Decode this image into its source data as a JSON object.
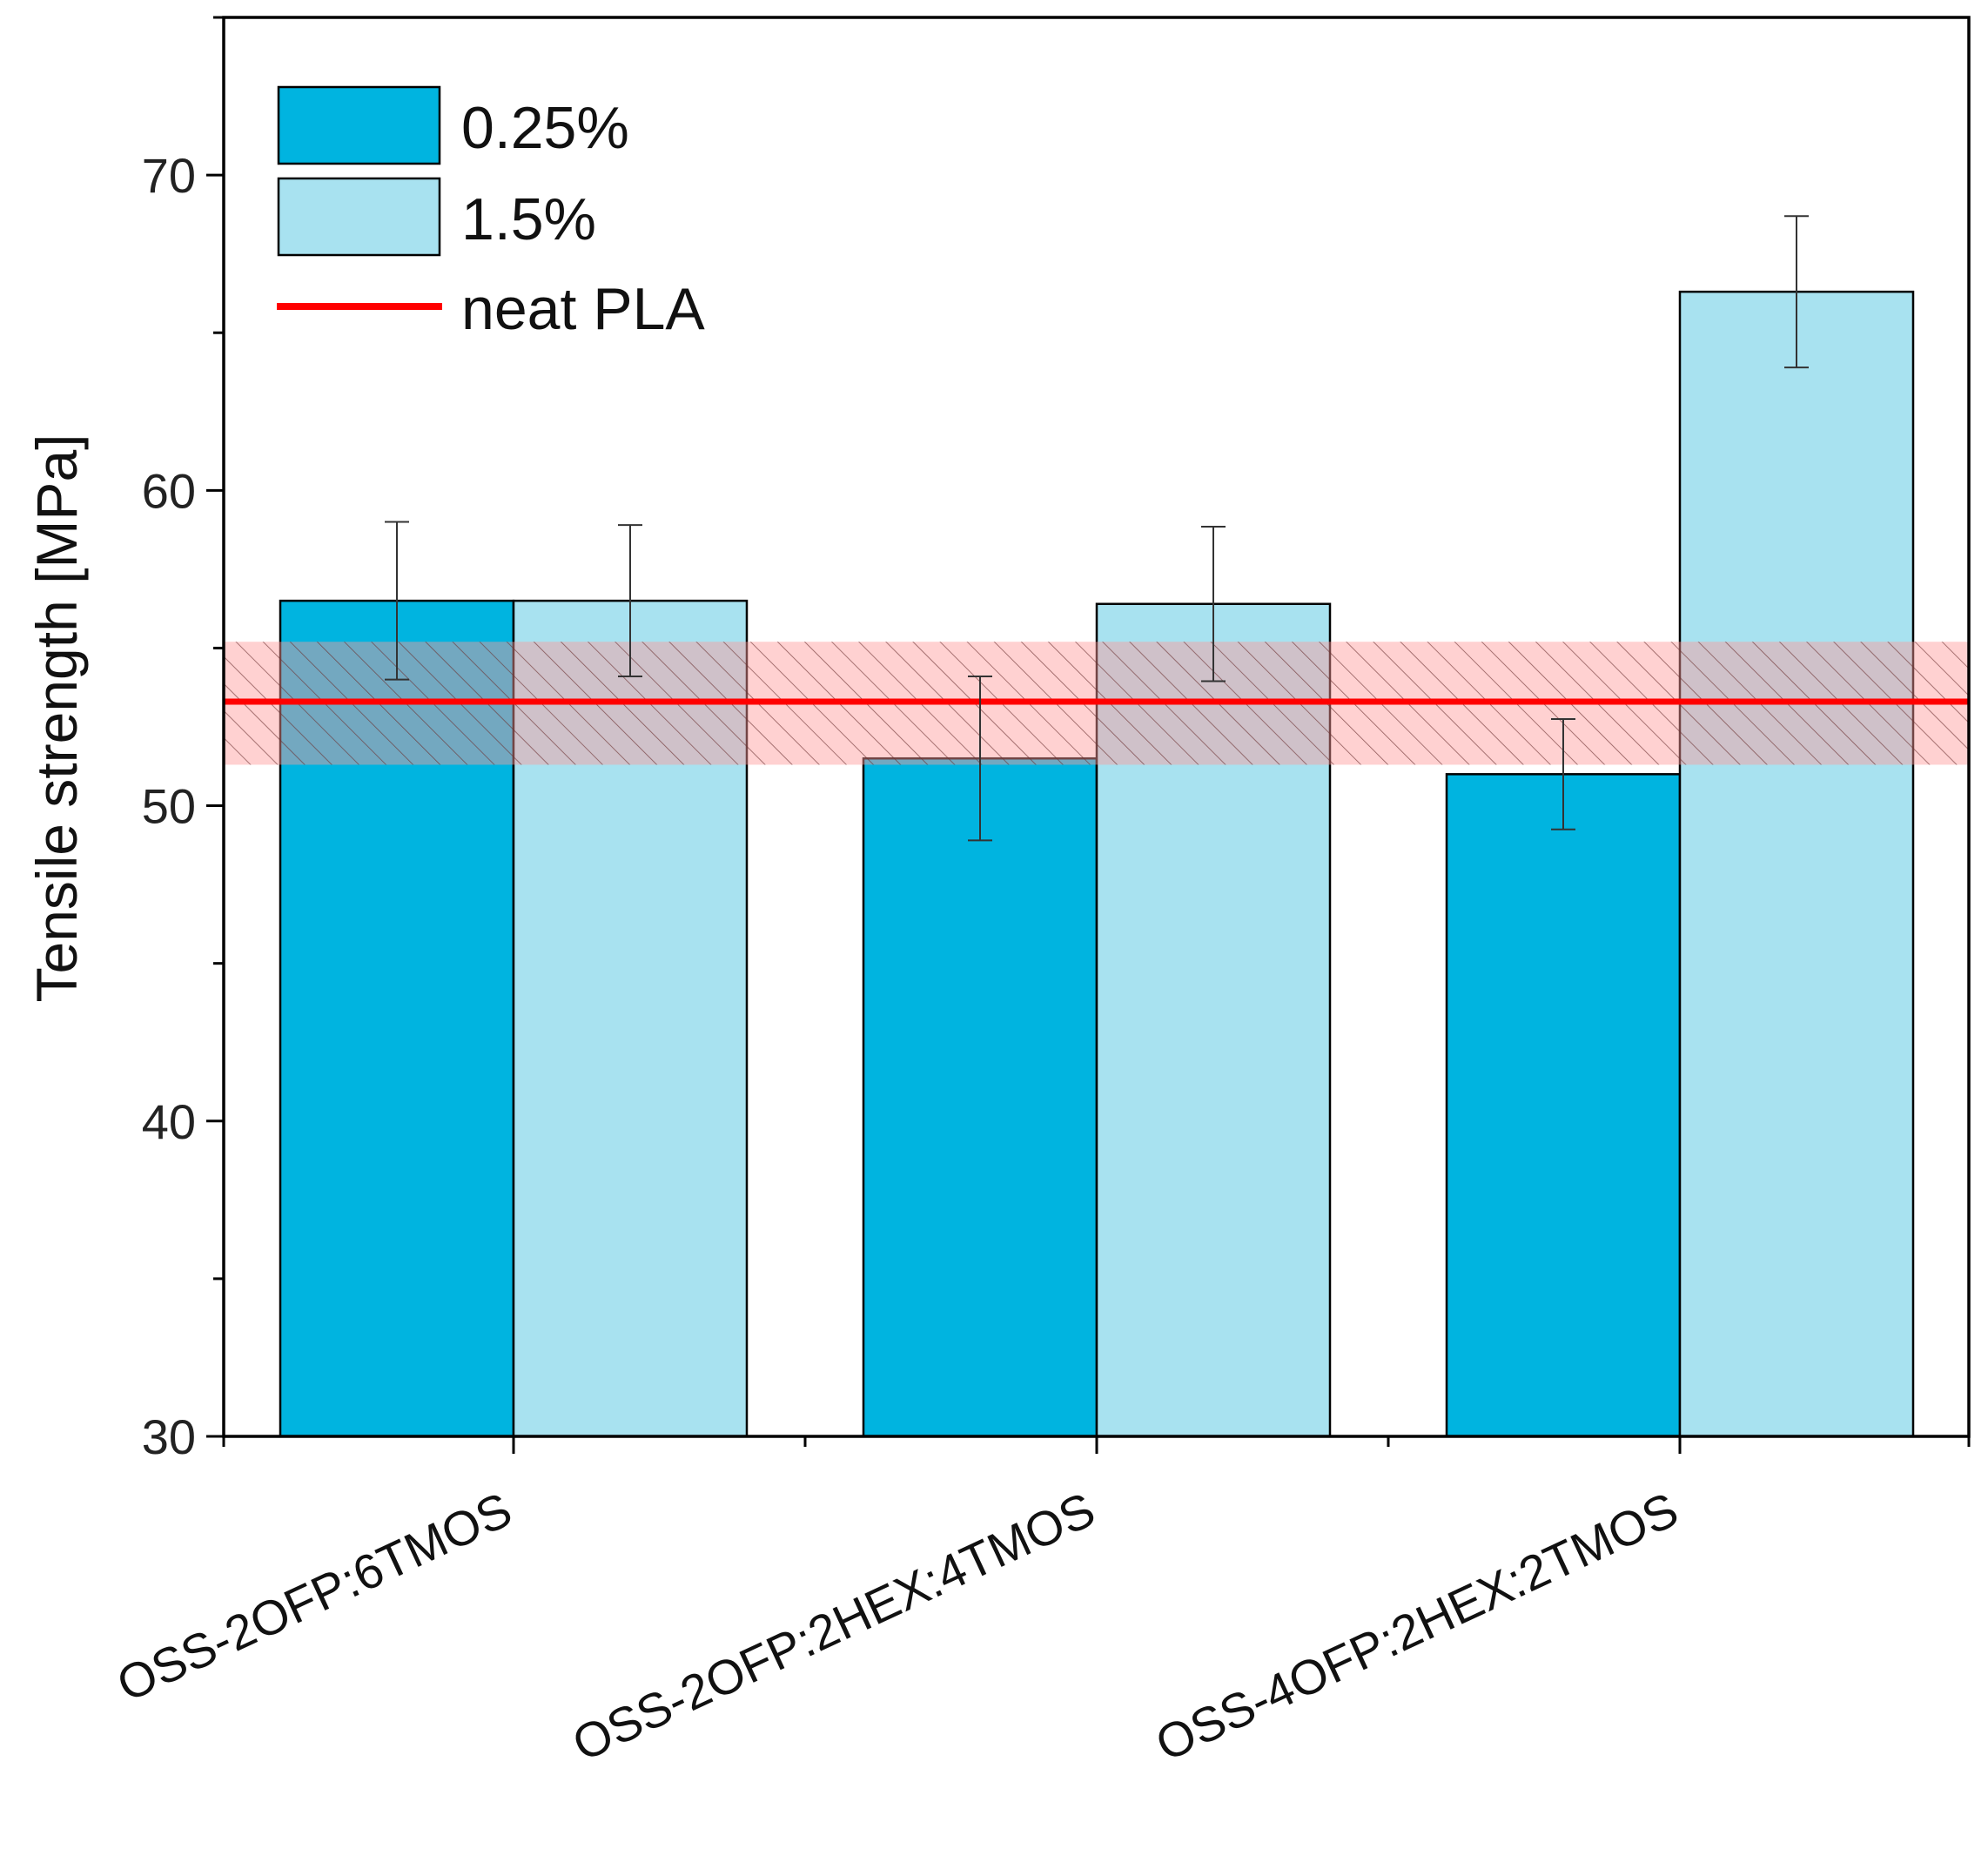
{
  "chart_data": {
    "type": "bar",
    "title": "",
    "xlabel": "",
    "ylabel": "Tensile strength [MPa]",
    "ylim": [
      30,
      75
    ],
    "yticks": [
      30,
      40,
      50,
      60,
      70
    ],
    "categories": [
      "OSS-2OFP:6TMOS",
      "OSS-2OFP:2HEX:4TMOS",
      "OSS-4OFP:2HEX:2TMOS"
    ],
    "series": [
      {
        "name": "0.25%",
        "color": "#00b4e0",
        "values": [
          56.5,
          51.5,
          51.0
        ],
        "errors": [
          2.5,
          2.6,
          1.75
        ]
      },
      {
        "name": "1.5%",
        "color": "#a8e2f0",
        "values": [
          56.5,
          56.4,
          66.3
        ],
        "errors": [
          2.4,
          2.45,
          2.4
        ]
      }
    ],
    "reference": {
      "name": "neat PLA",
      "color": "#ff0000",
      "value": 53.3,
      "band": [
        51.3,
        55.2
      ]
    },
    "legend_position": "top-left",
    "grid": false
  }
}
